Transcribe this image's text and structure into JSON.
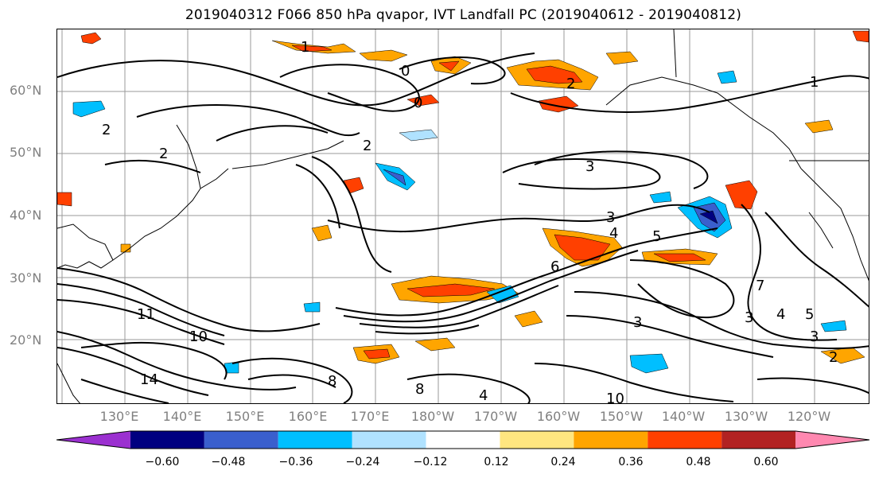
{
  "title": "2019040312 F066 850 hPa qvapor, IVT Landfall PC (2019040612 - 2019040812)",
  "lat_labels": [
    "60°N",
    "50°N",
    "40°N",
    "30°N",
    "20°N"
  ],
  "lon_labels": [
    "130°E",
    "140°E",
    "150°E",
    "160°E",
    "170°E",
    "180°W",
    "170°W",
    "160°W",
    "150°W",
    "140°W",
    "130°W",
    "120°W"
  ],
  "contour_labels": [
    "1",
    "0",
    "0",
    "2",
    "2",
    "3",
    "1",
    "2",
    "2",
    "3",
    "4",
    "5",
    "6",
    "7",
    "10",
    "11",
    "14",
    "8",
    "4",
    "3",
    "3",
    "4",
    "5",
    "3",
    "2",
    "8",
    "10"
  ],
  "colorbar": {
    "ticks": [
      "−0.60",
      "−0.48",
      "−0.36",
      "−0.24",
      "−0.12",
      "0.12",
      "0.24",
      "0.36",
      "0.48",
      "0.60"
    ],
    "colors": [
      "#9b30d0",
      "#000080",
      "#3a5fcd",
      "#00bfff",
      "#b0e2ff",
      "#ffffff",
      "#ffe680",
      "#ffa500",
      "#ff4000",
      "#b22222",
      "#ff88b0"
    ]
  }
}
